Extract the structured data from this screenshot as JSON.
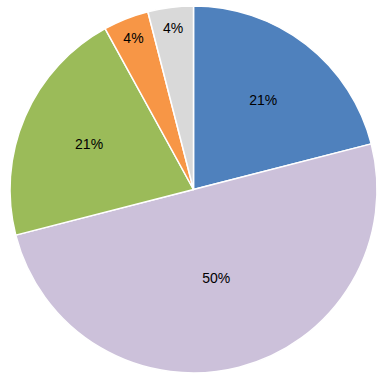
{
  "chart_data": {
    "type": "pie",
    "values": [
      21,
      50,
      21,
      4,
      4
    ],
    "value_labels": [
      "21%",
      "50%",
      "21%",
      "4%",
      "4%"
    ],
    "colors": [
      "#4f81bd",
      "#ccc1da",
      "#9bbb59",
      "#f79646",
      "#d9d9d9"
    ],
    "data_labels": true
  }
}
